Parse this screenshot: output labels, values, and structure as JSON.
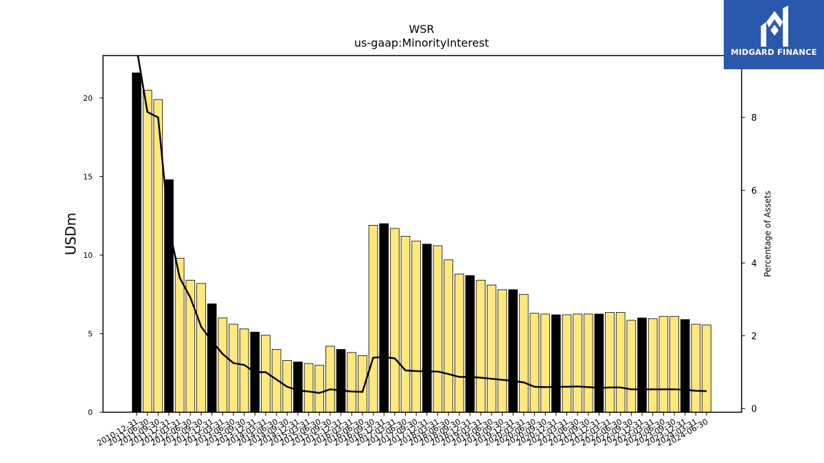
{
  "chart_data": {
    "type": "bar",
    "title": "WSR",
    "subtitle": "us-gaap:MinorityInterest",
    "ylabel": "USDm",
    "y2label": "Percentage of Assets",
    "ylim": [
      0,
      22.7
    ],
    "y2lim": [
      -0.1,
      9.7
    ],
    "yticks": [
      0,
      5,
      10,
      15,
      20
    ],
    "y2ticks": [
      0,
      2,
      4,
      6,
      8
    ],
    "categories": [
      "2010-12-31",
      "2011-06-30",
      "2011-09-30",
      "2011-12-31",
      "2012-03-31",
      "2012-06-30",
      "2012-09-30",
      "2012-12-31",
      "2013-03-31",
      "2013-06-30",
      "2013-09-30",
      "2013-12-31",
      "2014-03-31",
      "2014-06-30",
      "2014-09-30",
      "2014-12-31",
      "2015-03-31",
      "2015-06-30",
      "2015-09-30",
      "2015-12-31",
      "2016-03-31",
      "2016-06-30",
      "2016-09-30",
      "2016-12-31",
      "2017-03-31",
      "2017-06-30",
      "2017-09-30",
      "2017-12-31",
      "2018-03-31",
      "2018-06-30",
      "2018-09-30",
      "2018-12-31",
      "2019-03-31",
      "2019-06-30",
      "2019-09-30",
      "2019-12-31",
      "2020-03-31",
      "2020-06-30",
      "2020-09-30",
      "2020-12-31",
      "2021-03-31",
      "2021-06-30",
      "2021-09-30",
      "2021-12-31",
      "2022-03-31",
      "2022-06-30",
      "2022-09-30",
      "2022-12-31",
      "2023-03-31",
      "2023-06-30",
      "2023-09-30",
      "2023-12-31",
      "2024-03-31",
      "2024-06-30"
    ],
    "series": [
      {
        "type": "bar",
        "values": [
          21.6,
          20.5,
          19.9,
          14.8,
          9.8,
          8.4,
          8.2,
          6.9,
          6.0,
          5.6,
          5.3,
          5.1,
          4.9,
          4.0,
          3.3,
          3.2,
          3.1,
          3.0,
          4.2,
          4.0,
          3.8,
          3.6,
          11.9,
          12.0,
          11.7,
          11.2,
          10.9,
          10.7,
          10.6,
          9.7,
          8.8,
          8.7,
          8.4,
          8.1,
          7.8,
          7.8,
          7.5,
          6.3,
          6.25,
          6.2,
          6.2,
          6.25,
          6.25,
          6.25,
          6.35,
          6.35,
          5.85,
          6.0,
          5.95,
          6.1,
          6.1,
          5.9,
          5.6,
          5.55
        ],
        "colors": [
          "#000000",
          "#ffe87c",
          "#ffe87c",
          "#000000",
          "#ffe87c",
          "#ffe87c",
          "#ffe87c",
          "#000000",
          "#ffe87c",
          "#ffe87c",
          "#ffe87c",
          "#000000",
          "#ffe87c",
          "#ffe87c",
          "#ffe87c",
          "#000000",
          "#ffe87c",
          "#ffe87c",
          "#ffe87c",
          "#000000",
          "#ffe87c",
          "#ffe87c",
          "#ffe87c",
          "#000000",
          "#ffe87c",
          "#ffe87c",
          "#ffe87c",
          "#000000",
          "#ffe87c",
          "#ffe87c",
          "#ffe87c",
          "#000000",
          "#ffe87c",
          "#ffe87c",
          "#ffe87c",
          "#000000",
          "#ffe87c",
          "#ffe87c",
          "#ffe87c",
          "#000000",
          "#ffe87c",
          "#ffe87c",
          "#ffe87c",
          "#000000",
          "#ffe87c",
          "#ffe87c",
          "#ffe87c",
          "#000000",
          "#ffe87c",
          "#ffe87c",
          "#ffe87c",
          "#000000",
          "#ffe87c",
          "#ffe87c"
        ]
      },
      {
        "type": "line",
        "axis": "right",
        "color": "#000000",
        "values": [
          9.9,
          8.15,
          8.0,
          5.0,
          3.6,
          3.05,
          2.25,
          1.85,
          1.5,
          1.25,
          1.2,
          1.0,
          1.0,
          0.8,
          0.6,
          0.5,
          0.47,
          0.43,
          0.53,
          0.5,
          0.47,
          0.46,
          1.4,
          1.42,
          1.38,
          1.05,
          1.03,
          1.02,
          1.02,
          0.95,
          0.87,
          0.87,
          0.85,
          0.82,
          0.79,
          0.76,
          0.72,
          0.6,
          0.59,
          0.6,
          0.6,
          0.61,
          0.59,
          0.57,
          0.58,
          0.58,
          0.53,
          0.53,
          0.53,
          0.53,
          0.53,
          0.52,
          0.49,
          0.48
        ]
      }
    ]
  },
  "logo": {
    "text": "MIDGARD FINANCE",
    "background": "#2b58ad"
  }
}
